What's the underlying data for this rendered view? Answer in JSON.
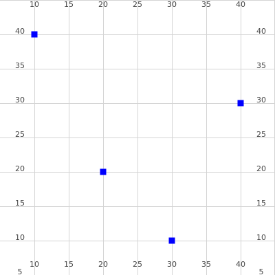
{
  "chart_data": {
    "type": "scatter",
    "title": "",
    "xlabel": "",
    "ylabel": "",
    "xlim": [
      5,
      44
    ],
    "ylim": [
      5,
      44
    ],
    "xticks": [
      10,
      15,
      20,
      25,
      30,
      35,
      40
    ],
    "yticks": [
      5,
      10,
      15,
      20,
      25,
      30,
      35,
      40
    ],
    "x_tick_labels": [
      "10",
      "15",
      "20",
      "25",
      "30",
      "35",
      "40"
    ],
    "y_tick_labels": [
      "5",
      "10",
      "15",
      "20",
      "25",
      "30",
      "35",
      "40"
    ],
    "x_ticks_top": true,
    "x_ticks_bottom": true,
    "y_ticks_left": true,
    "y_ticks_right": true,
    "grid": true,
    "marker": "square",
    "series": [
      {
        "color": "#0000ff",
        "points": [
          {
            "x": 10,
            "y": 40
          },
          {
            "x": 20,
            "y": 20
          },
          {
            "x": 30,
            "y": 10
          },
          {
            "x": 40,
            "y": 30
          }
        ]
      }
    ]
  }
}
